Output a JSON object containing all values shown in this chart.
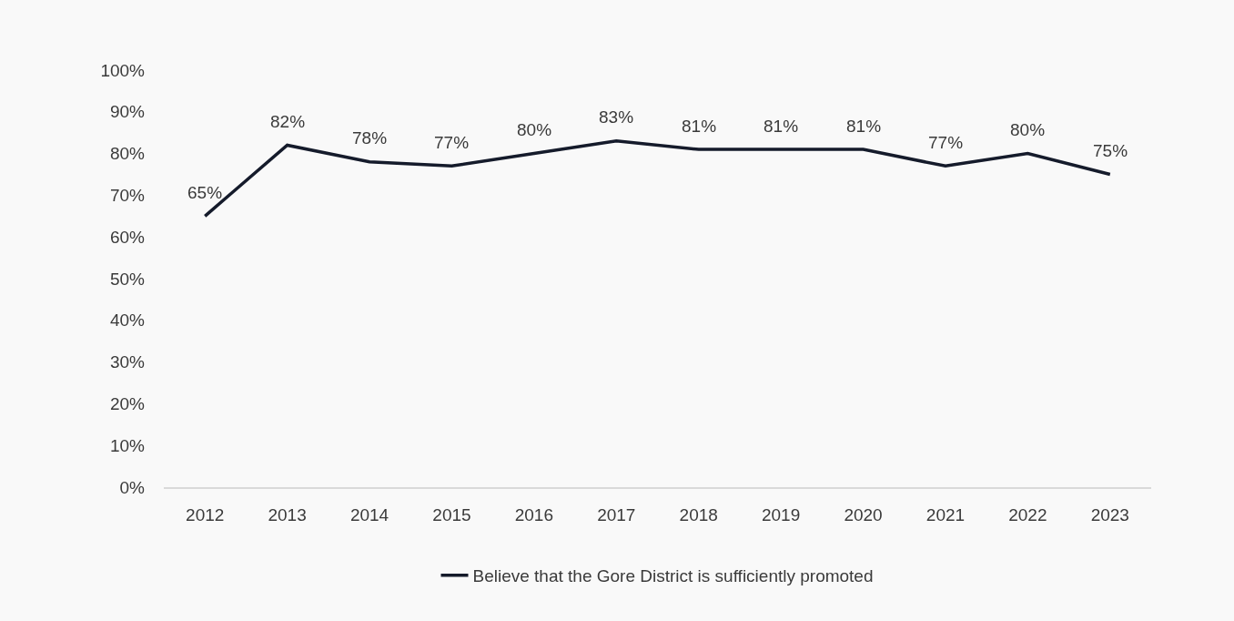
{
  "chart_data": {
    "type": "line",
    "categories": [
      "2012",
      "2013",
      "2014",
      "2015",
      "2016",
      "2017",
      "2018",
      "2019",
      "2020",
      "2021",
      "2022",
      "2023"
    ],
    "series": [
      {
        "name": "Believe that the Gore District is sufficiently promoted",
        "color": "#151b2b",
        "values": [
          65,
          82,
          78,
          77,
          80,
          83,
          81,
          81,
          81,
          77,
          80,
          75
        ],
        "value_labels": [
          "65%",
          "82%",
          "78%",
          "77%",
          "80%",
          "83%",
          "81%",
          "81%",
          "81%",
          "77%",
          "80%",
          "75%"
        ]
      }
    ],
    "ylim": [
      0,
      100
    ],
    "yticks": [
      {
        "value": 0,
        "label": "0%"
      },
      {
        "value": 10,
        "label": "10%"
      },
      {
        "value": 20,
        "label": "20%"
      },
      {
        "value": 30,
        "label": "30%"
      },
      {
        "value": 40,
        "label": "40%"
      },
      {
        "value": 50,
        "label": "50%"
      },
      {
        "value": 60,
        "label": "60%"
      },
      {
        "value": 70,
        "label": "70%"
      },
      {
        "value": 80,
        "label": "80%"
      },
      {
        "value": 90,
        "label": "90%"
      },
      {
        "value": 100,
        "label": "100%"
      }
    ],
    "grid": false,
    "legend": "bottom",
    "marker": "none",
    "line_style": "solid"
  }
}
